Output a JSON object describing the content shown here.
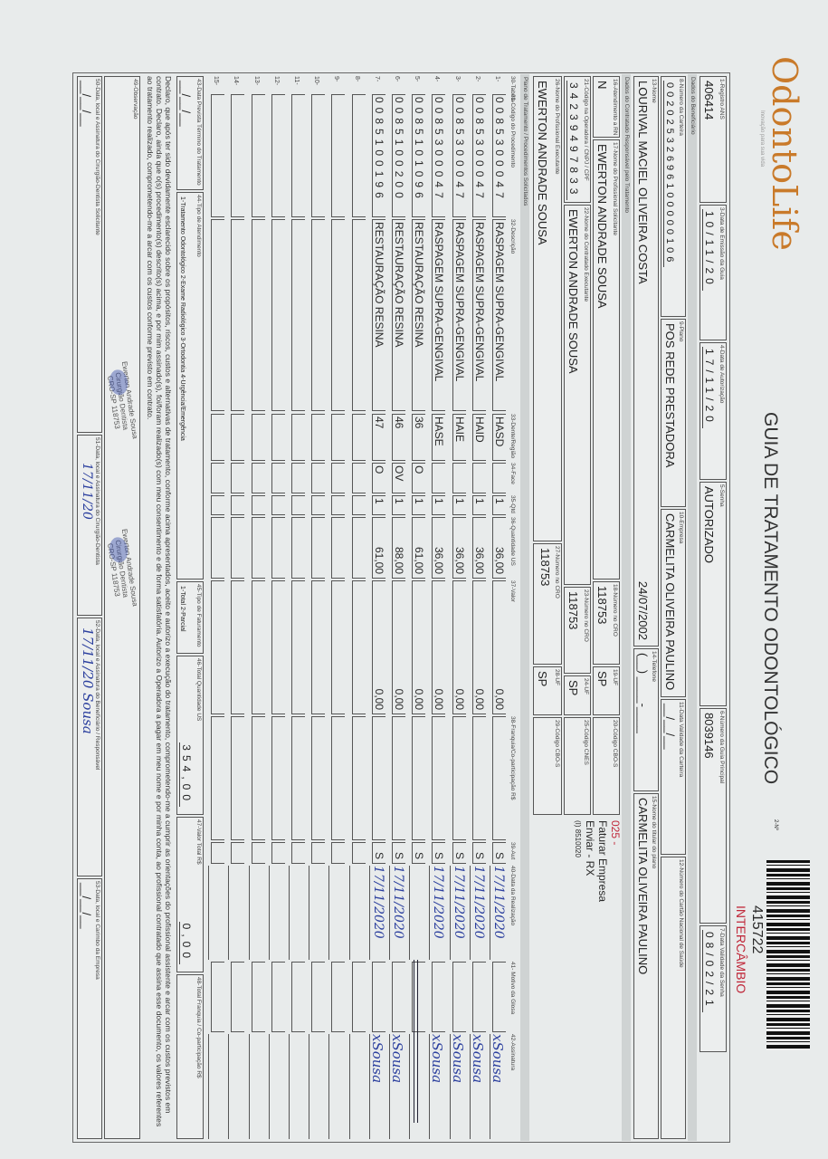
{
  "header": {
    "logo_text": "OdontoLife",
    "logo_tagline": "Inovação para sua vida",
    "title": "GUIA DE TRATAMENTO ODONTOLÓGICO",
    "guide_number_label": "2-Nº",
    "barcode_number": "415722",
    "exchange_label": "INTERCÂMBIO",
    "brand_color": "#c97a2a",
    "accent_red": "#c0283a"
  },
  "fields": {
    "registro_ans": {
      "label": "1-Registro ANS",
      "value": "406414"
    },
    "data_emissao": {
      "label": "3-Data de Emissão da Guia",
      "value": "10/11/20"
    },
    "data_autorizacao": {
      "label": "4-Data de Autorização",
      "value": "17/11/20"
    },
    "senha": {
      "label": "5-Senha",
      "value": "AUTORIZADO"
    },
    "guia_principal": {
      "label": "6-Número da Guia Principal",
      "value": "8039146"
    },
    "validade_senha": {
      "label": "7-Data Validade da Senha",
      "value": "08/02/21"
    },
    "carteira": {
      "label": "8-Número da Carteira",
      "value": "00202532696100000106"
    },
    "plano": {
      "label": "9-Plano",
      "value": "POS REDE PRESTADORA"
    },
    "empresa": {
      "label": "10-Empresa",
      "value": "CARMELITA OLIVEIRA PAULINO"
    },
    "validade_carteira": {
      "label": "11-Data Validade da Carteira",
      "value": "__/__/__"
    },
    "cns": {
      "label": "12-Número do Cartão Nacional de Saúde",
      "value": ""
    },
    "nome": {
      "label": "13-Nome",
      "value": "LOURIVAL MACIEL OLIVEIRA COSTA",
      "birth": "24/07/2002"
    },
    "telefone": {
      "label": "14-Telefone",
      "value": "(__) ____-____"
    },
    "titular": {
      "label": "15-Nome do titular do plano",
      "value": "CARMELITA OLIVEIRA PAULINO"
    },
    "atendimento_rn": {
      "label": "16-Atendimento a RN",
      "value": "N"
    },
    "prof_solicitante": {
      "label": "17-Nome do Profissional Solicitante",
      "value": "EWERTON ANDRADE SOUSA"
    },
    "cro_solicitante": {
      "label": "18-Número no CRO",
      "value": "118753"
    },
    "uf_solicitante": {
      "label": "19-UF",
      "value": "SP"
    },
    "cbo_solicitante": {
      "label": "20-Código CBO-S",
      "value": ""
    },
    "codigo_operadora": {
      "label": "21-Código na Operadora / CNPJ / CPF",
      "value": "34239497833"
    },
    "contratado_executante": {
      "label": "22-Nome do Contratado Executante",
      "value": "EWERTON ANDRADE SOUSA"
    },
    "cro_contratado": {
      "label": "23-Número no CRO",
      "value": "118753"
    },
    "uf_contratado": {
      "label": "24-UF",
      "value": "SP"
    },
    "cnes": {
      "label": "25-Código CNES",
      "value": ""
    },
    "prof_executante": {
      "label": "26-Nome do Profissional Executante",
      "value": "EWERTON ANDRADE SOUSA"
    },
    "cro_executante": {
      "label": "27-Número no CRO",
      "value": "118753"
    },
    "uf_executante": {
      "label": "28-UF",
      "value": "SP"
    },
    "cbo_executante": {
      "label": "29-Código CBO-S",
      "value": ""
    }
  },
  "notes": {
    "code": "025 -",
    "line1": "Faturar Empresa",
    "line2": "Enviar - RX",
    "line3": "(I) 8510020"
  },
  "sections": {
    "beneficiario": "Dados do Beneficiário",
    "contratado": "Dados do Contratado Responsável pelo Tratamento",
    "plano": "Plano de Tratamento / Procedimentos Solicitados"
  },
  "table": {
    "headers": [
      "30-Tabela",
      "31-Código do Procedimento",
      "32-Descrição",
      "33-Dente/Região",
      "34-Face",
      "35-Qtd",
      "36-Quantidade US",
      "37-Valor",
      "38-Franquia/Co-participação R$",
      "39-Aut",
      "40-Data da Realização",
      "41- Motivo da Glosa",
      "42-Assinatura"
    ],
    "rows": [
      {
        "n": "1-",
        "code": "0085300047",
        "desc": "RASPAGEM SUPRA-GENGIVAL",
        "dente": "HASD",
        "face": "",
        "qtd": "1",
        "us": "36,00",
        "valor": "0,00",
        "aut": "S",
        "date": "17/11/2020",
        "sign": "xSousa"
      },
      {
        "n": "2-",
        "code": "0085300047",
        "desc": "RASPAGEM SUPRA-GENGIVAL",
        "dente": "HAID",
        "face": "",
        "qtd": "1",
        "us": "36,00",
        "valor": "0,00",
        "aut": "S",
        "date": "17/11/2020",
        "sign": "xSousa"
      },
      {
        "n": "3-",
        "code": "0085300047",
        "desc": "RASPAGEM SUPRA-GENGIVAL",
        "dente": "HAIE",
        "face": "",
        "qtd": "1",
        "us": "36,00",
        "valor": "0,00",
        "aut": "S",
        "date": "17/11/2020",
        "sign": "xSousa"
      },
      {
        "n": "4-",
        "code": "0085300047",
        "desc": "RASPAGEM SUPRA-GENGIVAL",
        "dente": "HASE",
        "face": "",
        "qtd": "1",
        "us": "36,00",
        "valor": "0,00",
        "aut": "S",
        "date": "17/11/2020",
        "sign": "xSousa"
      },
      {
        "n": "5-",
        "code": "0085101096",
        "desc": "RESTAURAÇÃO RESINA",
        "dente": "36",
        "face": "O",
        "qtd": "1",
        "us": "61,00",
        "valor": "0,00",
        "aut": "S",
        "date": "",
        "sign": ""
      },
      {
        "n": "6-",
        "code": "0085100200",
        "desc": "RESTAURAÇÃO RESINA",
        "dente": "46",
        "face": "OV",
        "qtd": "1",
        "us": "88,00",
        "valor": "0,00",
        "aut": "S",
        "date": "17/11/2020",
        "sign": "xSousa"
      },
      {
        "n": "7-",
        "code": "0085100196",
        "desc": "RESTAURAÇÃO RESINA",
        "dente": "47",
        "face": "O",
        "qtd": "1",
        "us": "61,00",
        "valor": "0,00",
        "aut": "S",
        "date": "17/11/2020",
        "sign": "xSousa"
      },
      {
        "n": "8-"
      },
      {
        "n": "9-"
      },
      {
        "n": "10-"
      },
      {
        "n": "11-"
      },
      {
        "n": "12-"
      },
      {
        "n": "13-"
      },
      {
        "n": "14-"
      },
      {
        "n": "15-"
      }
    ]
  },
  "totals": {
    "data_prevista": {
      "label": "43-Data Prevista Término do Tratamento",
      "value": "__/__/__"
    },
    "tipo_atendimento": {
      "label": "44-Tipo de Atendimento",
      "options": "1-Tratamento Odontológico  2-Exame Radiológico  3-Ortodontia  4-Urgência/Emergência"
    },
    "tipo_faturamento": {
      "label": "45-Tipo de Faturamento",
      "options": "1-Total  2-Parcial"
    },
    "total_us": {
      "label": "46-Total Quantidade US",
      "value": "354,00"
    },
    "valor_total": {
      "label": "47-Valor Total R$",
      "value": "0,00"
    },
    "total_franquia": {
      "label": "48-Total Franquia / Co-participação R$",
      "value": ""
    }
  },
  "declaration": "Declaro, que após ter sido devidamente esclarecido sobre os propósitos, riscos, custos e alternativas de tratamento, conforme acima apresentados, aceito e autorizo a execução do tratamento, comprometendo-me a cumprir as orientações do profissional assistente e arcar com os custos previstos em contrato. Declaro, ainda que o(s) procedimento(s) descrito(s) acima, e por mim assinado(s), foi/foram realizado(s) com meu consentimento e de forma satisfatória. Autorizo a Operadora a pagar em meu nome e por minha conta, ao profissional contratado que assina esse documento, os valores referentes ao tratamento realizado, comprometendo-me a arcar com os custos conforme previsto em contrato.",
  "observacao": {
    "label": "49-Observação",
    "value": ""
  },
  "signatures": {
    "s50": {
      "label": "50-Data, local e Assinatura do Cirurgião-Dentista Solicitante",
      "value": "__/__/__"
    },
    "s51": {
      "label": "51-Data, local e Assinatura do Cirurgião-Dentista",
      "value": "17/11/20"
    },
    "s52": {
      "label": "52-Data, local e Assinatura do Beneficiário / Responsável",
      "value": "17/11/20 Sousa"
    },
    "s53": {
      "label": "53-Data, local e Carimbo da Empresa",
      "value": "__/__/__"
    }
  },
  "stamp": {
    "line1": "Ewerton Andrade Sousa",
    "line2": "Cirurgião Dentista",
    "line3": "CRO-SP 118753"
  }
}
